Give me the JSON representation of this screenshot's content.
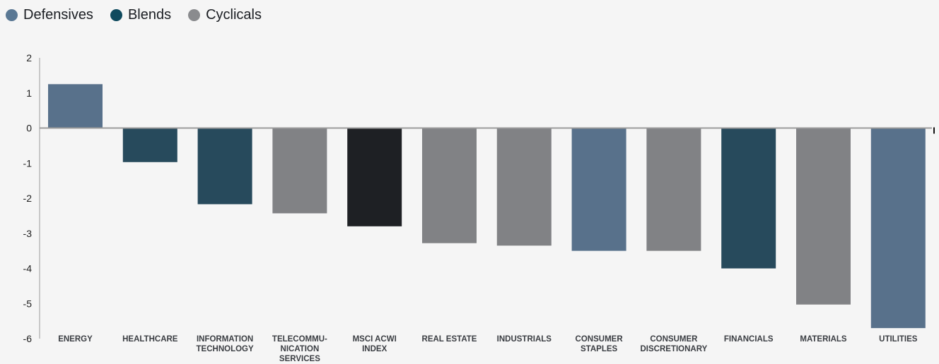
{
  "legend": [
    {
      "label": "Defensives",
      "color": "#5a7894"
    },
    {
      "label": "Blends",
      "color": "#0f4a5e"
    },
    {
      "label": "Cyclicals",
      "color": "#8a8b8e"
    }
  ],
  "chart_data": {
    "type": "bar",
    "title": "",
    "xlabel": "",
    "ylabel": "",
    "ylim": [
      -6,
      2
    ],
    "yticks": [
      2,
      1,
      0,
      -1,
      -2,
      -3,
      -4,
      -5,
      -6
    ],
    "grid": false,
    "legend_position": "top-left",
    "categories": [
      [
        "ENERGY"
      ],
      [
        "HEALTHCARE"
      ],
      [
        "INFORMATION",
        "TECHNOLOGY"
      ],
      [
        "TELECOMMU-",
        "NICATION",
        "SERVICES"
      ],
      [
        "MSCI ACWI",
        "INDEX"
      ],
      [
        "REAL ESTATE"
      ],
      [
        "INDUSTRIALS"
      ],
      [
        "CONSUMER",
        "STAPLES"
      ],
      [
        "CONSUMER",
        "DISCRETIONARY"
      ],
      [
        "FINANCIALS"
      ],
      [
        "MATERIALS"
      ],
      [
        "UTILITIES"
      ]
    ],
    "values": [
      1.25,
      -0.97,
      -2.17,
      -2.43,
      -2.8,
      -3.28,
      -3.35,
      -3.5,
      -3.5,
      -4.0,
      -5.03,
      -5.7
    ],
    "groups": [
      "Defensives",
      "Blends",
      "Blends",
      "Cyclicals",
      "Index",
      "Cyclicals",
      "Cyclicals",
      "Defensives",
      "Cyclicals",
      "Blends",
      "Cyclicals",
      "Defensives"
    ],
    "bar_colors": {
      "Defensives": "#58718b",
      "Blends": "#274a5c",
      "Cyclicals": "#818285",
      "Index": "#1e2024"
    },
    "axis_color": "#9a9a9a"
  }
}
